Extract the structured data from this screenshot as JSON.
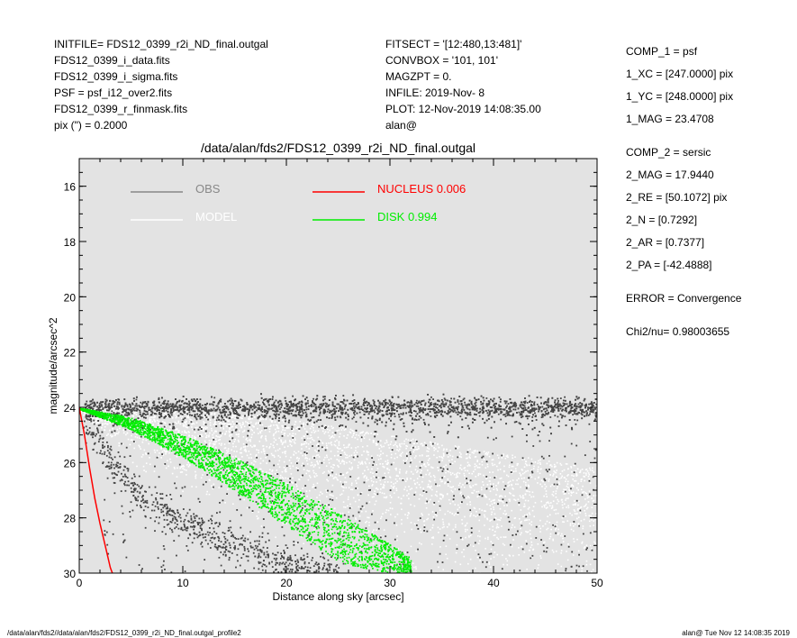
{
  "header_left": [
    "INITFILE= FDS12_0399_r2i_ND_final.outgal",
    "FDS12_0399_i_data.fits",
    "FDS12_0399_i_sigma.fits",
    "PSF    = psf_i12_over2.fits",
    "FDS12_0399_r_finmask.fits",
    "pix (\") =  0.2000"
  ],
  "header_mid": [
    "FITSECT = '[12:480,13:481]'",
    "CONVBOX = '101, 101'",
    "MAGZPT  =             0.",
    "INFILE: 2019-Nov- 8",
    "PLOT: 12-Nov-2019 14:08:35.00",
    "alan@"
  ],
  "header_right": [
    "COMP_1  = psf",
    "1_XC    = [247.0000] pix",
    "1_YC    = [248.0000] pix",
    "1_MAG   = 23.4708",
    "COMP_2  = sersic",
    "2_MAG   = 17.9440",
    "2_RE    = [50.1072] pix",
    "2_N     = [0.7292]",
    "2_AR    = [0.7377]",
    "2_PA    = [-42.4888]",
    "ERROR   = Convergence",
    "Chi2/nu=       0.98003655"
  ],
  "footer_left": "/data/alan/fds2//data/alan/fds2/FDS12_0399_r2i_ND_final.outgal_profile2",
  "footer_right": "alan@  Tue Nov 12 14:08:35 2019",
  "colors": {
    "background": "#e3e3e3",
    "obs": "#444444",
    "model": "#ffffff",
    "nucleus": "#ff0000",
    "disk": "#00ee00"
  },
  "chart_data": {
    "type": "scatter",
    "title": "/data/alan/fds2/FDS12_0399_r2i_ND_final.outgal",
    "xlabel": "Distance along sky [arcsec]",
    "ylabel": "magnitude/arcsec^2",
    "xlim": [
      0,
      50
    ],
    "ylim": [
      30,
      15
    ],
    "y_inverted": true,
    "xticks": [
      0,
      10,
      20,
      30,
      40,
      50
    ],
    "yticks": [
      16,
      18,
      20,
      22,
      24,
      26,
      28,
      30
    ],
    "grid": false,
    "legend_position": "top-left",
    "legend": [
      {
        "label": "OBS",
        "color": "#888888"
      },
      {
        "label": "MODEL",
        "color": "#ffffff"
      },
      {
        "label": "NUCLEUS  0.006",
        "color": "#ff0000"
      },
      {
        "label": "DISK  0.994",
        "color": "#00ee00"
      }
    ],
    "series": [
      {
        "name": "OBS",
        "kind": "scatter_band",
        "x_range": [
          0.5,
          50
        ],
        "y_center": 24.0,
        "y_spread": 0.55,
        "lower_tail": {
          "x": [
            0.3,
            3,
            6,
            10,
            15,
            20,
            25
          ],
          "y": [
            24.3,
            26.0,
            27.2,
            28.2,
            29.0,
            29.7,
            30.0
          ]
        }
      },
      {
        "name": "MODEL",
        "kind": "scatter_band",
        "x": [
          0,
          5,
          10,
          15,
          20,
          25,
          30,
          35,
          40,
          50
        ],
        "y_top": [
          24.0,
          24.0,
          24.1,
          24.2,
          24.4,
          24.7,
          25.0,
          25.3,
          25.6,
          26.2
        ],
        "y_bottom": [
          24.2,
          25.5,
          26.5,
          27.3,
          28.0,
          28.6,
          29.2,
          29.7,
          30.0,
          30.0
        ]
      },
      {
        "name": "NUCLEUS",
        "kind": "line",
        "x": [
          0,
          0.5,
          1.0,
          1.5,
          2.0,
          2.5,
          3.0,
          3.2
        ],
        "y": [
          24.0,
          25.0,
          26.2,
          27.3,
          28.2,
          29.0,
          29.8,
          30.0
        ]
      },
      {
        "name": "DISK",
        "kind": "band",
        "x": [
          0,
          5,
          10,
          15,
          20,
          25,
          30,
          32
        ],
        "y_top": [
          24.0,
          24.35,
          25.0,
          25.8,
          26.75,
          27.8,
          28.95,
          29.45
        ],
        "y_bottom": [
          24.05,
          24.8,
          25.8,
          27.0,
          28.3,
          29.6,
          30.0,
          30.0
        ]
      }
    ]
  }
}
